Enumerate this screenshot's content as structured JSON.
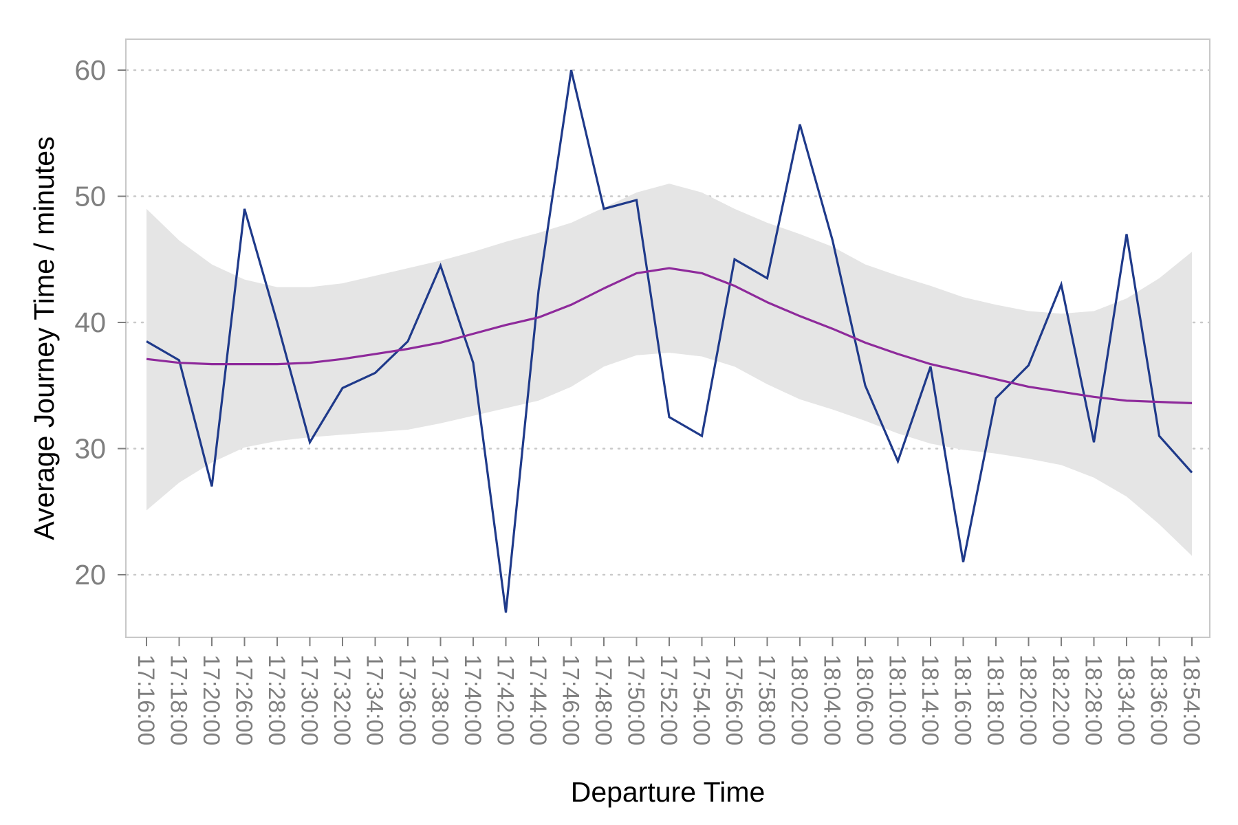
{
  "chart_data": {
    "type": "line",
    "title": "",
    "xlabel": "Departure Time",
    "ylabel": "Average Journey Time / minutes",
    "ylim": [
      15,
      62
    ],
    "y_ticks": [
      20,
      30,
      40,
      50,
      60
    ],
    "grid": "horizontal dotted",
    "legend": "none",
    "categories": [
      "17:16:00",
      "17:18:00",
      "17:20:00",
      "17:26:00",
      "17:28:00",
      "17:30:00",
      "17:32:00",
      "17:34:00",
      "17:36:00",
      "17:38:00",
      "17:40:00",
      "17:42:00",
      "17:44:00",
      "17:46:00",
      "17:48:00",
      "17:50:00",
      "17:52:00",
      "17:54:00",
      "17:56:00",
      "17:58:00",
      "18:02:00",
      "18:04:00",
      "18:06:00",
      "18:10:00",
      "18:14:00",
      "18:16:00",
      "18:18:00",
      "18:20:00",
      "18:22:00",
      "18:28:00",
      "18:34:00",
      "18:36:00",
      "18:54:00"
    ],
    "series": [
      {
        "kind": "line",
        "color": "#1f3a8a",
        "values": [
          38.5,
          37.0,
          27.0,
          49.0,
          40.0,
          30.5,
          34.8,
          36.0,
          38.5,
          44.5,
          36.8,
          17.0,
          42.5,
          60.0,
          49.0,
          49.7,
          32.5,
          31.0,
          45.0,
          43.5,
          55.7,
          46.5,
          35.0,
          29.0,
          36.5,
          21.0,
          34.0,
          36.6,
          43.0,
          30.5,
          47.0,
          31.0,
          28.1
        ]
      },
      {
        "kind": "smooth",
        "color": "#8e2a9b",
        "values": [
          37.1,
          36.8,
          36.7,
          36.7,
          36.7,
          36.8,
          37.1,
          37.5,
          37.9,
          38.4,
          39.1,
          39.8,
          40.4,
          41.4,
          42.7,
          43.9,
          44.3,
          43.9,
          42.9,
          41.6,
          40.5,
          39.5,
          38.4,
          37.5,
          36.7,
          36.1,
          35.5,
          34.9,
          34.5,
          34.1,
          33.8,
          33.7,
          33.6
        ]
      },
      {
        "kind": "confidence_band",
        "color": "#e5e5e5",
        "upper": [
          49.0,
          46.5,
          44.6,
          43.4,
          42.8,
          42.8,
          43.1,
          43.7,
          44.3,
          44.9,
          45.6,
          46.4,
          47.1,
          47.9,
          49.1,
          50.3,
          51.0,
          50.3,
          49.0,
          47.9,
          47.0,
          46.0,
          44.6,
          43.7,
          42.9,
          42.0,
          41.4,
          40.9,
          40.7,
          40.9,
          41.9,
          43.5,
          45.6
        ],
        "lower": [
          25.1,
          27.3,
          28.9,
          30.1,
          30.6,
          30.9,
          31.1,
          31.3,
          31.5,
          32.0,
          32.6,
          33.2,
          33.8,
          34.9,
          36.5,
          37.4,
          37.6,
          37.3,
          36.5,
          35.1,
          33.9,
          33.1,
          32.2,
          31.2,
          30.4,
          29.9,
          29.6,
          29.2,
          28.7,
          27.7,
          26.2,
          24.0,
          21.5
        ]
      }
    ]
  }
}
